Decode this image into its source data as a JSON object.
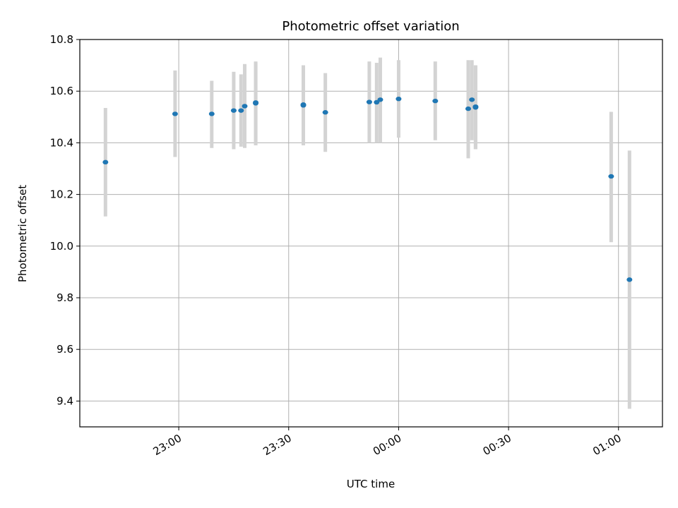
{
  "chart_data": {
    "type": "scatter",
    "title": "Photometric offset variation",
    "xlabel": "UTC time",
    "ylabel": "Photometric offset",
    "ylim": [
      9.3,
      10.8
    ],
    "xlim": [
      "22:33",
      "01:12"
    ],
    "grid": true,
    "colors": {
      "point": "#1f77b4",
      "errorbar": "#d3d3d3",
      "grid": "#b0b0b0"
    },
    "x_ticks": [
      "23:00",
      "23:30",
      "00:00",
      "00:30",
      "01:00"
    ],
    "y_ticks": [
      "9.4",
      "9.6",
      "9.8",
      "10.0",
      "10.2",
      "10.4",
      "10.6",
      "10.8"
    ],
    "points": [
      {
        "x": "22:40",
        "y": 10.325,
        "lo": 10.115,
        "hi": 10.535
      },
      {
        "x": "22:59",
        "y": 10.512,
        "lo": 10.345,
        "hi": 10.68
      },
      {
        "x": "23:09",
        "y": 10.512,
        "lo": 10.38,
        "hi": 10.64
      },
      {
        "x": "23:15",
        "y": 10.525,
        "lo": 10.375,
        "hi": 10.675
      },
      {
        "x": "23:17",
        "y": 10.525,
        "lo": 10.385,
        "hi": 10.665
      },
      {
        "x": "23:18",
        "y": 10.542,
        "lo": 10.38,
        "hi": 10.705
      },
      {
        "x": "23:21",
        "y": 10.553,
        "lo": 10.39,
        "hi": 10.715
      },
      {
        "x": "23:21",
        "y": 10.556,
        "lo": 10.4,
        "hi": 10.71
      },
      {
        "x": "23:34",
        "y": 10.548,
        "lo": 10.39,
        "hi": 10.7
      },
      {
        "x": "23:34",
        "y": 10.545,
        "lo": 10.395,
        "hi": 10.7
      },
      {
        "x": "23:40",
        "y": 10.518,
        "lo": 10.365,
        "hi": 10.67
      },
      {
        "x": "23:52",
        "y": 10.558,
        "lo": 10.4,
        "hi": 10.715
      },
      {
        "x": "23:54",
        "y": 10.557,
        "lo": 10.4,
        "hi": 10.71
      },
      {
        "x": "23:55",
        "y": 10.567,
        "lo": 10.4,
        "hi": 10.73
      },
      {
        "x": "00:00",
        "y": 10.57,
        "lo": 10.42,
        "hi": 10.72
      },
      {
        "x": "00:10",
        "y": 10.562,
        "lo": 10.41,
        "hi": 10.715
      },
      {
        "x": "00:19",
        "y": 10.532,
        "lo": 10.34,
        "hi": 10.72
      },
      {
        "x": "00:20",
        "y": 10.567,
        "lo": 10.41,
        "hi": 10.72
      },
      {
        "x": "00:21",
        "y": 10.537,
        "lo": 10.375,
        "hi": 10.7
      },
      {
        "x": "00:21",
        "y": 10.54,
        "lo": 10.375,
        "hi": 10.7
      },
      {
        "x": "00:58",
        "y": 10.27,
        "lo": 10.015,
        "hi": 10.52
      },
      {
        "x": "01:03",
        "y": 9.87,
        "lo": 9.37,
        "hi": 10.37
      }
    ]
  }
}
